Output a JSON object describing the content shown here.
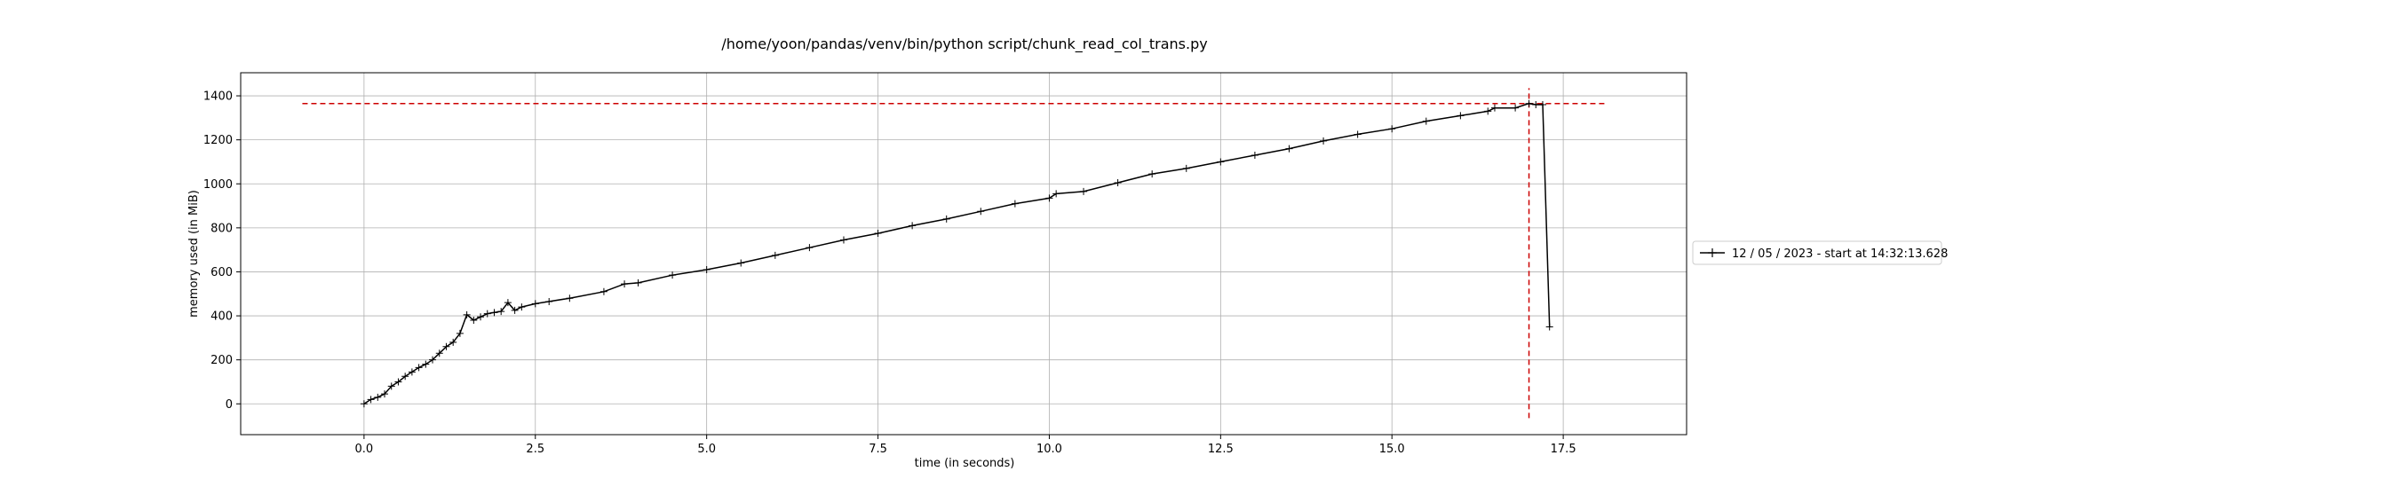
{
  "chart_data": {
    "type": "line",
    "title": "/home/yoon/pandas/venv/bin/python script/chunk_read_col_trans.py",
    "xlabel": "time (in seconds)",
    "ylabel": "memory used (in MiB)",
    "xlim": [
      -1.8,
      19.3
    ],
    "ylim": [
      -140,
      1505
    ],
    "x_ticks": [
      0.0,
      2.5,
      5.0,
      7.5,
      10.0,
      12.5,
      15.0,
      17.5
    ],
    "x_tick_labels": [
      "0.0",
      "2.5",
      "5.0",
      "7.5",
      "10.0",
      "12.5",
      "15.0",
      "17.5"
    ],
    "y_ticks": [
      0,
      200,
      400,
      600,
      800,
      1000,
      1200,
      1400
    ],
    "y_tick_labels": [
      "0",
      "200",
      "400",
      "600",
      "800",
      "1000",
      "1200",
      "1400"
    ],
    "grid": true,
    "legend_position": "right",
    "series": [
      {
        "name": "12 / 05 / 2023 - start at 14:32:13.628",
        "color": "#000000",
        "marker": "+",
        "x": [
          0.0,
          0.1,
          0.2,
          0.3,
          0.4,
          0.5,
          0.6,
          0.7,
          0.8,
          0.9,
          1.0,
          1.1,
          1.2,
          1.3,
          1.4,
          1.5,
          1.6,
          1.7,
          1.8,
          1.9,
          2.0,
          2.1,
          2.2,
          2.3,
          2.5,
          2.7,
          3.0,
          3.5,
          3.8,
          4.0,
          4.5,
          5.0,
          5.5,
          6.0,
          6.5,
          7.0,
          7.5,
          8.0,
          8.5,
          9.0,
          9.5,
          10.0,
          10.1,
          10.5,
          11.0,
          11.5,
          12.0,
          12.5,
          13.0,
          13.5,
          14.0,
          14.5,
          15.0,
          15.5,
          16.0,
          16.4,
          16.5,
          16.8,
          17.0,
          17.1,
          17.2,
          17.3
        ],
        "values": [
          0,
          20,
          30,
          45,
          80,
          100,
          125,
          145,
          165,
          180,
          200,
          230,
          260,
          280,
          320,
          405,
          380,
          395,
          410,
          415,
          420,
          460,
          425,
          440,
          455,
          465,
          480,
          510,
          545,
          550,
          585,
          610,
          640,
          675,
          710,
          745,
          775,
          810,
          840,
          875,
          910,
          935,
          955,
          965,
          1005,
          1045,
          1070,
          1100,
          1130,
          1160,
          1195,
          1225,
          1250,
          1285,
          1310,
          1330,
          1345,
          1345,
          1365,
          1360,
          1360,
          350
        ]
      }
    ],
    "reference_lines": [
      {
        "orientation": "horizontal",
        "value": 1365,
        "from": -0.9,
        "to": 18.1,
        "color": "#cc0000",
        "style": "dashed"
      },
      {
        "orientation": "vertical",
        "value": 17.0,
        "from": -65,
        "to": 1435,
        "color": "#cc0000",
        "style": "dashed"
      }
    ]
  }
}
